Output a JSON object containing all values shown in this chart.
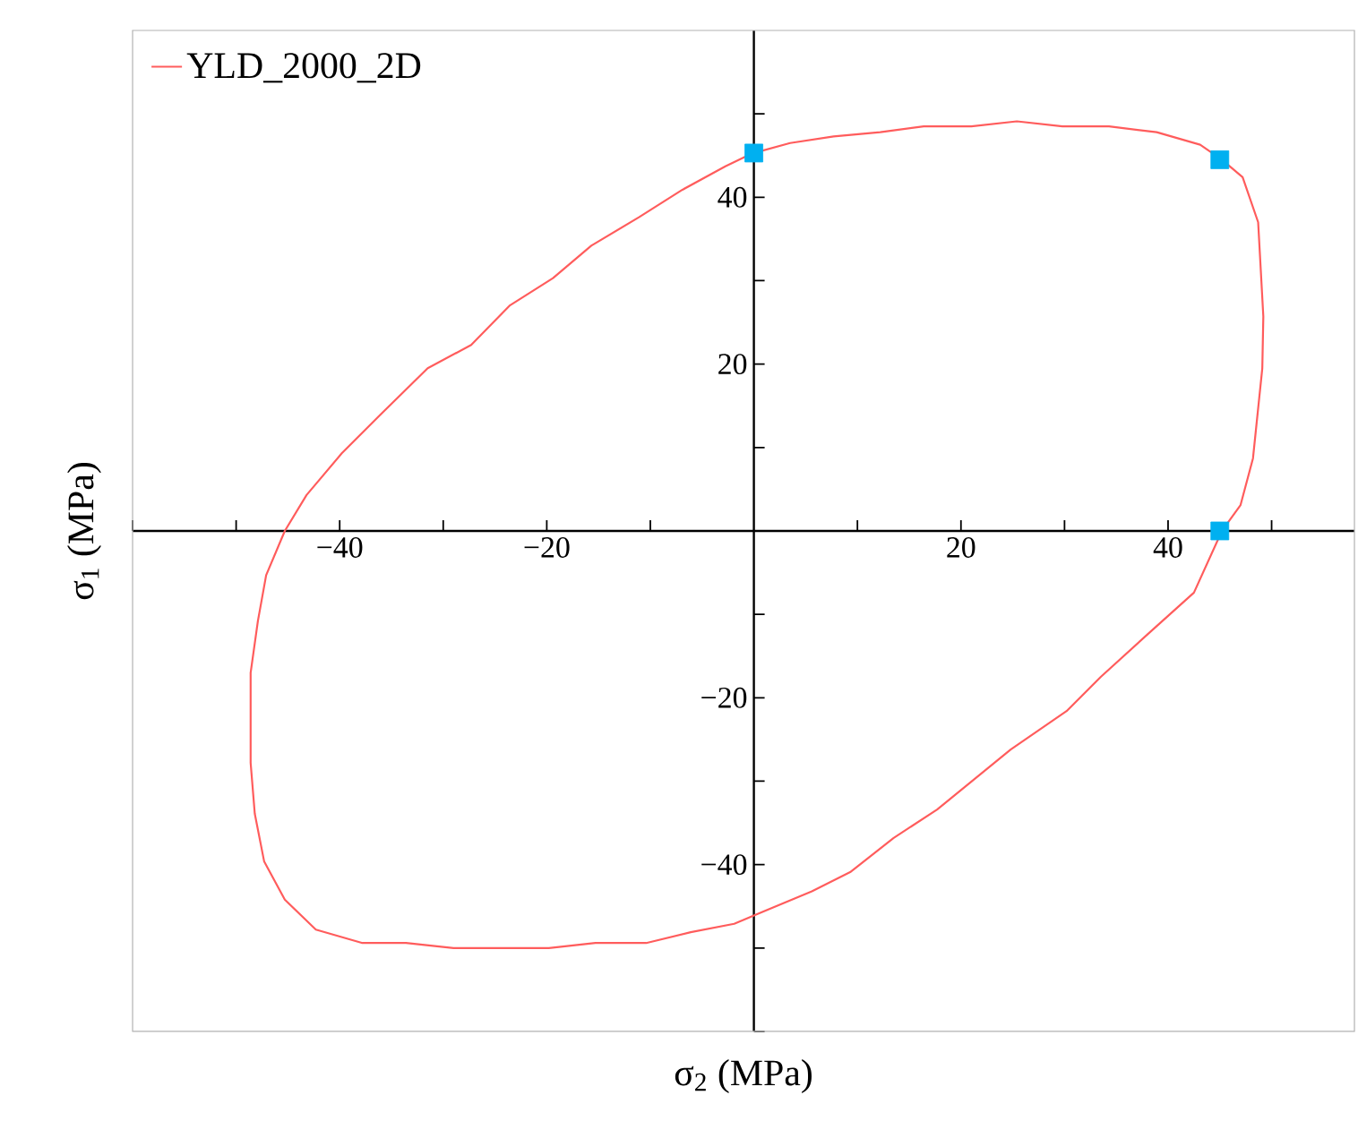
{
  "chart_data": {
    "type": "line",
    "xlabel": "σ$_{2}$  (MPa)",
    "ylabel": "σ$_{1}$  (MPa)",
    "xlim": [
      -60,
      58
    ],
    "ylim": [
      -60,
      60
    ],
    "xticks": [
      {
        "value": -60,
        "label": null
      },
      {
        "value": -50,
        "label": null
      },
      {
        "value": -40,
        "label": "−40"
      },
      {
        "value": -30,
        "label": null
      },
      {
        "value": -20,
        "label": "−20"
      },
      {
        "value": -10,
        "label": null
      },
      {
        "value": 10,
        "label": null
      },
      20,
      {
        "value": 30,
        "label": null
      },
      40,
      {
        "value": 50,
        "label": null
      }
    ],
    "yticks": [
      {
        "value": -60,
        "label": null
      },
      {
        "value": -50,
        "label": null
      },
      {
        "value": -40,
        "label": "−40"
      },
      {
        "value": -30,
        "label": null
      },
      {
        "value": -20,
        "label": "−20"
      },
      {
        "value": -10,
        "label": null
      },
      {
        "value": 10,
        "label": null
      },
      20,
      {
        "value": 30,
        "label": null
      },
      40,
      {
        "value": 50,
        "label": null
      }
    ],
    "legend": "top left",
    "series": [
      {
        "name": "YLD_2000_2D",
        "color": "#ff5c5c",
        "marker": "none",
        "x": [
          0,
          3.5,
          7.7,
          12.2,
          16.4,
          21,
          25.4,
          29.8,
          34.3,
          38.9,
          43.1,
          45.2,
          47.2,
          48.7,
          49.2,
          49.1,
          48.2,
          47,
          45.2,
          42.5,
          38.1,
          33.5,
          30.2,
          24.8,
          17.7,
          13.5,
          9.3,
          5.6,
          0,
          -1.9,
          -6.1,
          -10.4,
          -15.3,
          -19.8,
          -29,
          -33.6,
          -37.8,
          -42.3,
          -45.3,
          -47.3,
          -48.2,
          -48.6,
          -48.6,
          -47.9,
          -47.1,
          -45.3,
          -43.2,
          -39.8,
          -36.1,
          -31.5,
          -27.3,
          -23.6,
          -19.4,
          -15.7,
          -11.1,
          -6.9,
          -2.75,
          -0.6
        ],
        "values": [
          45.3,
          46.5,
          47.3,
          47.8,
          48.5,
          48.5,
          49.1,
          48.5,
          48.5,
          47.8,
          46.3,
          44.5,
          42.4,
          37,
          25.7,
          19.5,
          8.7,
          3.1,
          0,
          -7.4,
          -12.3,
          -17.5,
          -21.6,
          -26.2,
          -33.4,
          -36.8,
          -40.9,
          -43.2,
          -46.1,
          -47.1,
          -48.1,
          -49.4,
          -49.4,
          -50,
          -50,
          -49.4,
          -49.4,
          -47.8,
          -44.2,
          -39.6,
          -33.9,
          -27.8,
          -17,
          -10.8,
          -5.3,
          0,
          4.3,
          9.3,
          13.9,
          19.5,
          22.3,
          27,
          30.3,
          34.2,
          37.6,
          40.9,
          43.7,
          45
        ]
      },
      {
        "type": "scatter",
        "color": "#00b0f0",
        "marker": "square",
        "x": [
          0,
          45,
          45
        ],
        "values": [
          45.3,
          44.5,
          0
        ]
      }
    ]
  }
}
